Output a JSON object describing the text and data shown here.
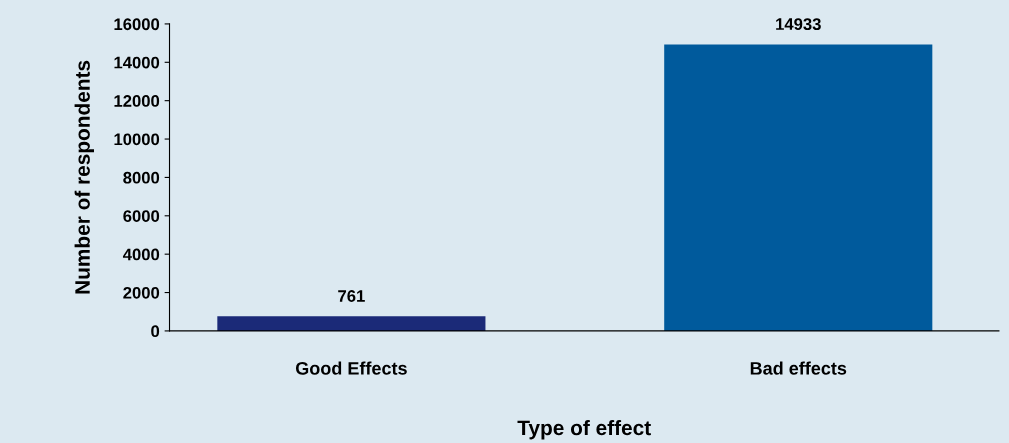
{
  "chart_data": {
    "type": "bar",
    "xlabel": "Type of effect",
    "ylabel": "Number of respondents",
    "categories": [
      "Good Effects",
      "Bad effects"
    ],
    "values": [
      761,
      14933
    ],
    "colors": [
      "#1b2a78",
      "#005a9c"
    ],
    "ylim": [
      0,
      16000
    ],
    "yticks": [
      0,
      2000,
      4000,
      6000,
      8000,
      10000,
      12000,
      14000,
      16000
    ],
    "data_labels": true,
    "grid": false,
    "legend": false
  }
}
